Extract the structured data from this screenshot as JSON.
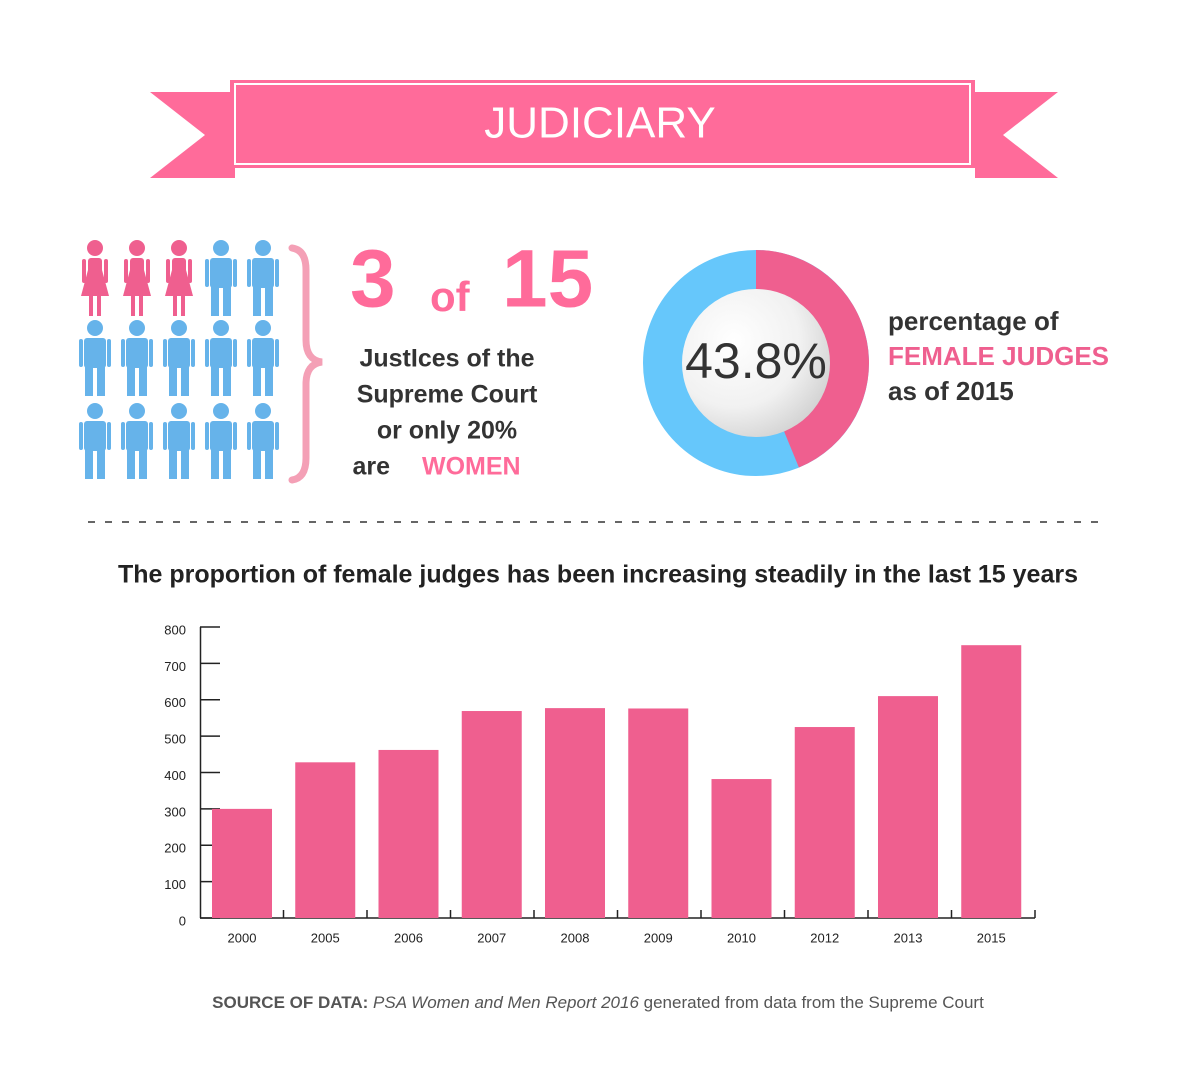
{
  "banner": {
    "title": "JUDICIARY"
  },
  "justices": {
    "women": 3,
    "of": "of",
    "total": 15,
    "lines": [
      "JustIces of the",
      "Supreme Court",
      "or only 20%",
      "are"
    ],
    "highlight": "WOMEN"
  },
  "chart_data": [
    {
      "type": "donut",
      "values": [
        43.8
      ],
      "value_labels": [
        "43.8%"
      ],
      "color": "#ef5f8f",
      "rest_color": "#66c7fb",
      "caption": [
        "percentage of",
        "FEMALE JUDGES",
        "as of 2015"
      ]
    },
    {
      "type": "bar",
      "title": "The proportion of female judges has been increasing steadily in the last 15 years",
      "categories": [
        "2000",
        "2005",
        "2006",
        "2007",
        "2008",
        "2009",
        "2010",
        "2012",
        "2013",
        "2015"
      ],
      "values": [
        300,
        428,
        462,
        569,
        577,
        576,
        382,
        525,
        610,
        750
      ],
      "color": "#ef5f8f",
      "ylim": [
        0,
        800
      ],
      "yticks": [
        0,
        100,
        200,
        300,
        400,
        500,
        600,
        700,
        800
      ],
      "grid": false
    }
  ],
  "source": {
    "label": "SOURCE OF DATA:",
    "report": "PSA Women and Men Report 2016",
    "rest": "generated from data from the Supreme Court"
  }
}
